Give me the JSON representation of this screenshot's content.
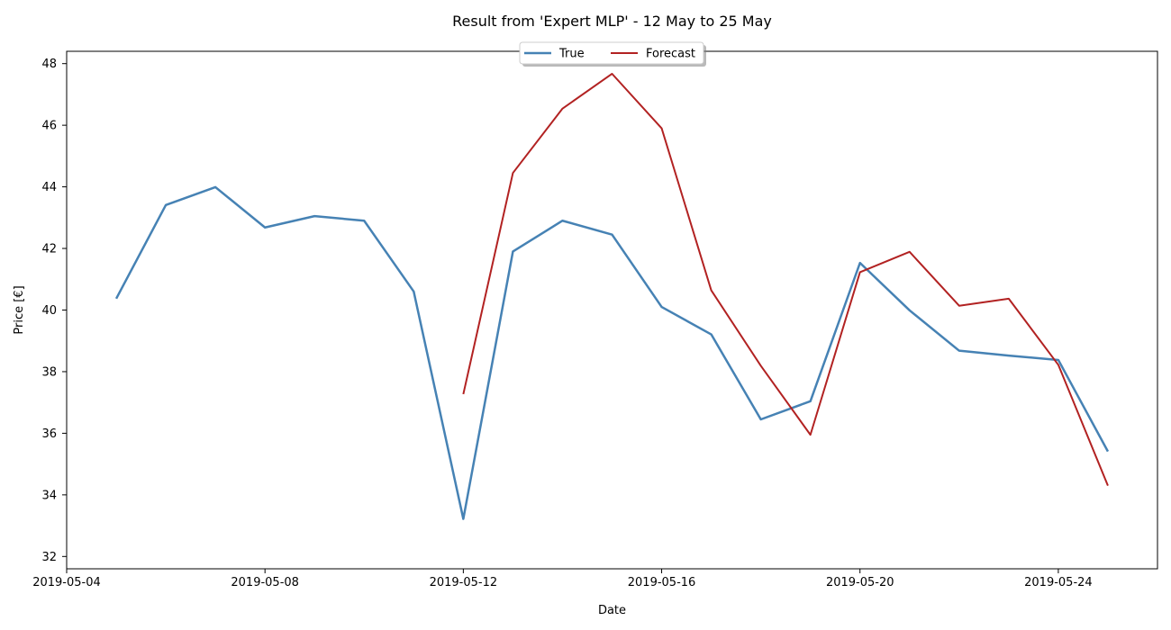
{
  "chart_data": {
    "type": "line",
    "title": "Result from 'Expert MLP' - 12 May to 25 May",
    "xlabel": "Date",
    "ylabel": "Price [€]",
    "xlim": [
      "2019-05-04",
      "2019-05-26"
    ],
    "ylim": [
      31.6,
      48.4
    ],
    "x_ticks": [
      "2019-05-04",
      "2019-05-08",
      "2019-05-12",
      "2019-05-16",
      "2019-05-20",
      "2019-05-24"
    ],
    "y_ticks": [
      32,
      34,
      36,
      38,
      40,
      42,
      44,
      46,
      48
    ],
    "grid": false,
    "legend_position": "top-center",
    "series": [
      {
        "name": "True",
        "color": "#4682b4",
        "x": [
          "2019-05-05",
          "2019-05-06",
          "2019-05-07",
          "2019-05-08",
          "2019-05-09",
          "2019-05-10",
          "2019-05-11",
          "2019-05-12",
          "2019-05-13",
          "2019-05-14",
          "2019-05-15",
          "2019-05-16",
          "2019-05-17",
          "2019-05-18",
          "2019-05-19",
          "2019-05-20",
          "2019-05-21",
          "2019-05-22",
          "2019-05-23",
          "2019-05-24",
          "2019-05-25"
        ],
        "values": [
          40.37,
          43.41,
          43.99,
          42.68,
          43.05,
          42.9,
          40.6,
          33.22,
          41.9,
          42.9,
          42.45,
          40.1,
          39.21,
          36.45,
          37.04,
          41.53,
          39.99,
          38.68,
          38.52,
          38.38,
          35.41
        ]
      },
      {
        "name": "Forecast",
        "color": "#b22222",
        "x": [
          "2019-05-12",
          "2019-05-13",
          "2019-05-14",
          "2019-05-15",
          "2019-05-16",
          "2019-05-17",
          "2019-05-18",
          "2019-05-19",
          "2019-05-20",
          "2019-05-21",
          "2019-05-22",
          "2019-05-23",
          "2019-05-24",
          "2019-05-25"
        ],
        "values": [
          37.27,
          44.45,
          46.54,
          47.67,
          45.9,
          40.64,
          38.19,
          35.95,
          41.23,
          41.89,
          40.14,
          40.37,
          38.22,
          34.3
        ]
      }
    ]
  }
}
